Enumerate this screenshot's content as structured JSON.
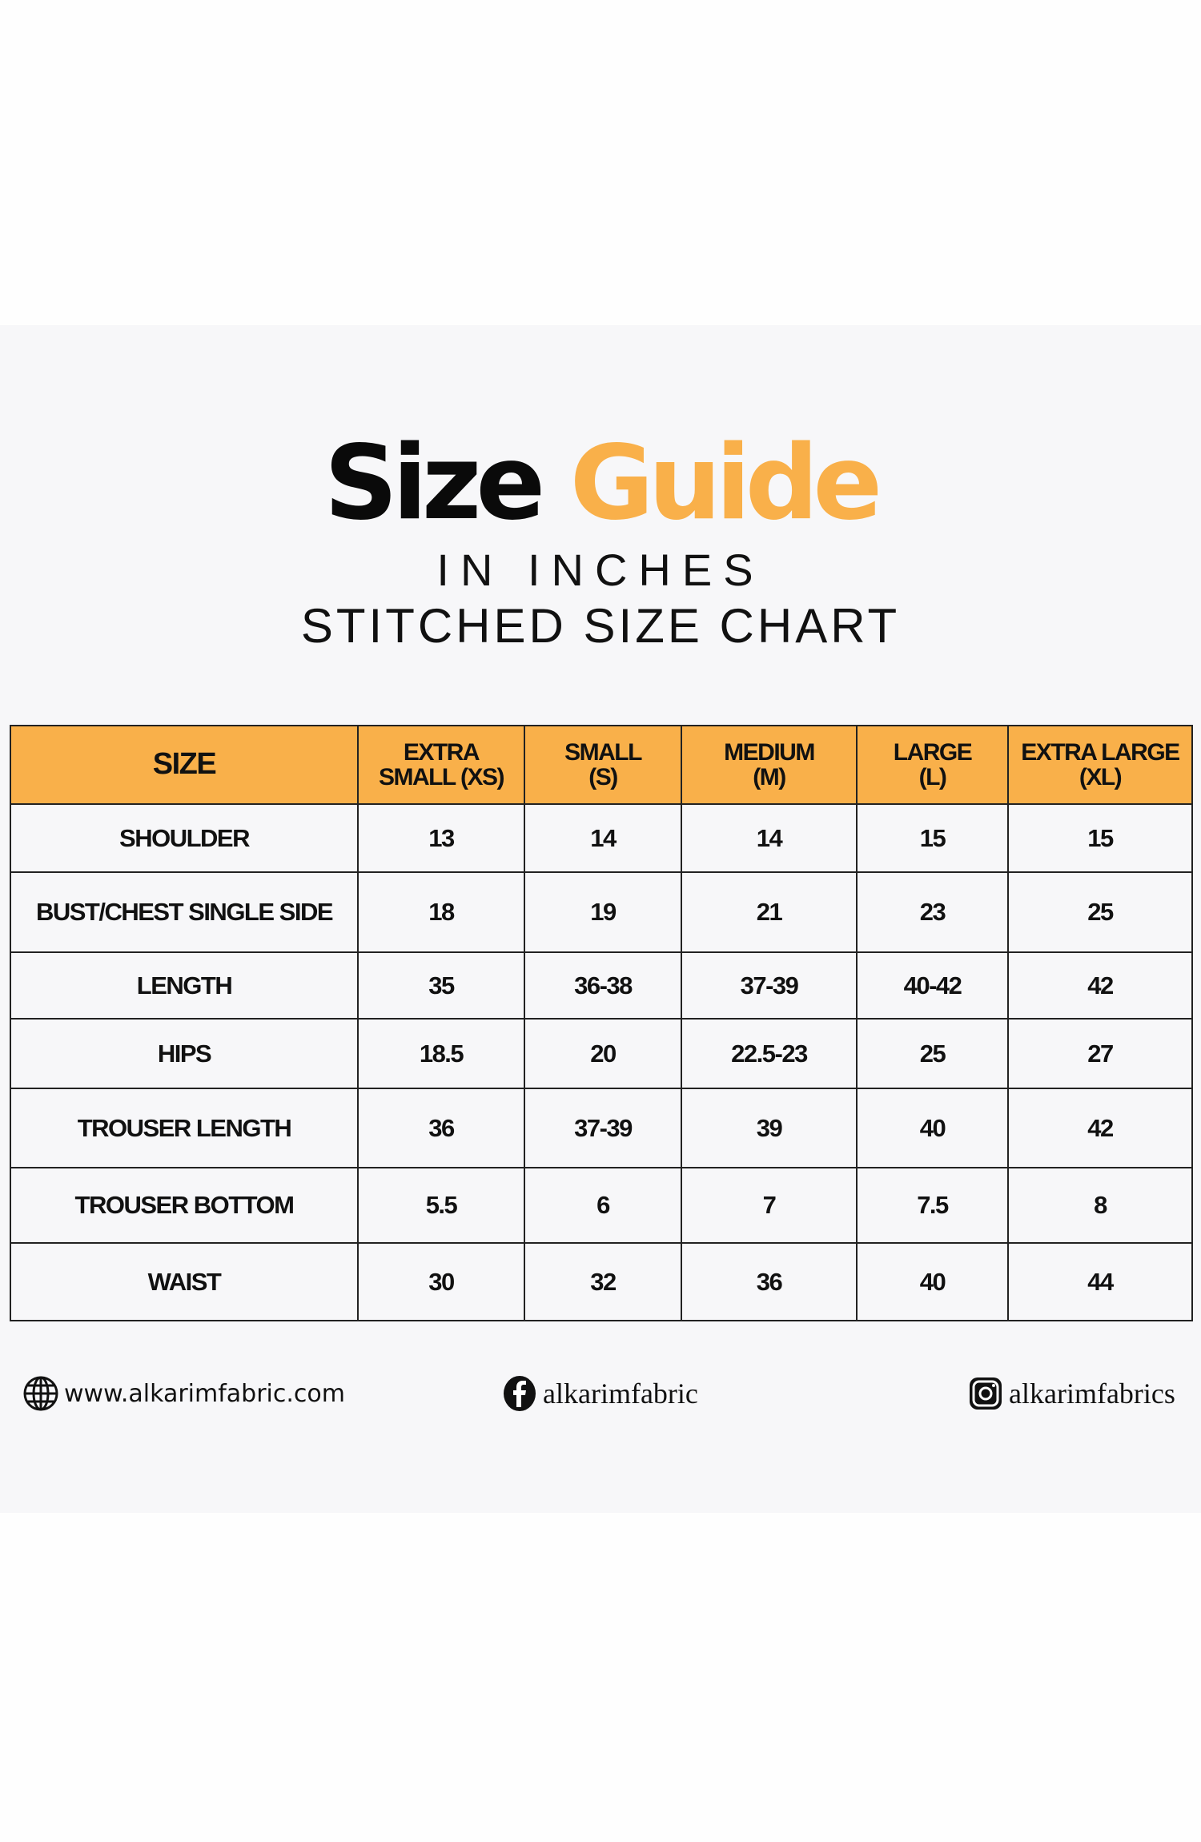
{
  "header": {
    "title_part1": "Size",
    "title_part2": "Guide",
    "subtitle1": "IN INCHES",
    "subtitle2": "STITCHED SIZE CHART",
    "accent_color": "#f9b04a"
  },
  "table": {
    "columns": [
      "SIZE",
      "EXTRA SMALL (XS)",
      "SMALL (S)",
      "MEDIUM (M)",
      "LARGE (L)",
      "EXTRA LARGE (XL)"
    ],
    "column_lines": [
      [
        "SIZE"
      ],
      [
        "EXTRA",
        "SMALL (XS)"
      ],
      [
        "SMALL",
        "(S)"
      ],
      [
        "MEDIUM",
        "(M)"
      ],
      [
        "LARGE",
        "(L)"
      ],
      [
        "EXTRA LARGE",
        "(XL)"
      ]
    ],
    "rows": [
      [
        "SHOULDER",
        "13",
        "14",
        "14",
        "15",
        "15"
      ],
      [
        "BUST/CHEST SINGLE SIDE",
        "18",
        "19",
        "21",
        "23",
        "25"
      ],
      [
        "LENGTH",
        "35",
        "36-38",
        "37-39",
        "40-42",
        "42"
      ],
      [
        "HIPS",
        "18.5",
        "20",
        "22.5-23",
        "25",
        "27"
      ],
      [
        "TROUSER LENGTH",
        "36",
        "37-39",
        "39",
        "40",
        "42"
      ],
      [
        "TROUSER BOTTOM",
        "5.5",
        "6",
        "7",
        "7.5",
        "8"
      ],
      [
        "WAIST",
        "30",
        "32",
        "36",
        "40",
        "44"
      ]
    ]
  },
  "footer": {
    "website": {
      "icon": "globe-icon",
      "text": "www.alkarimfabric.com"
    },
    "facebook": {
      "icon": "facebook-icon",
      "text": "alkarimfabric"
    },
    "instagram": {
      "icon": "instagram-icon",
      "text": "alkarimfabrics"
    }
  }
}
